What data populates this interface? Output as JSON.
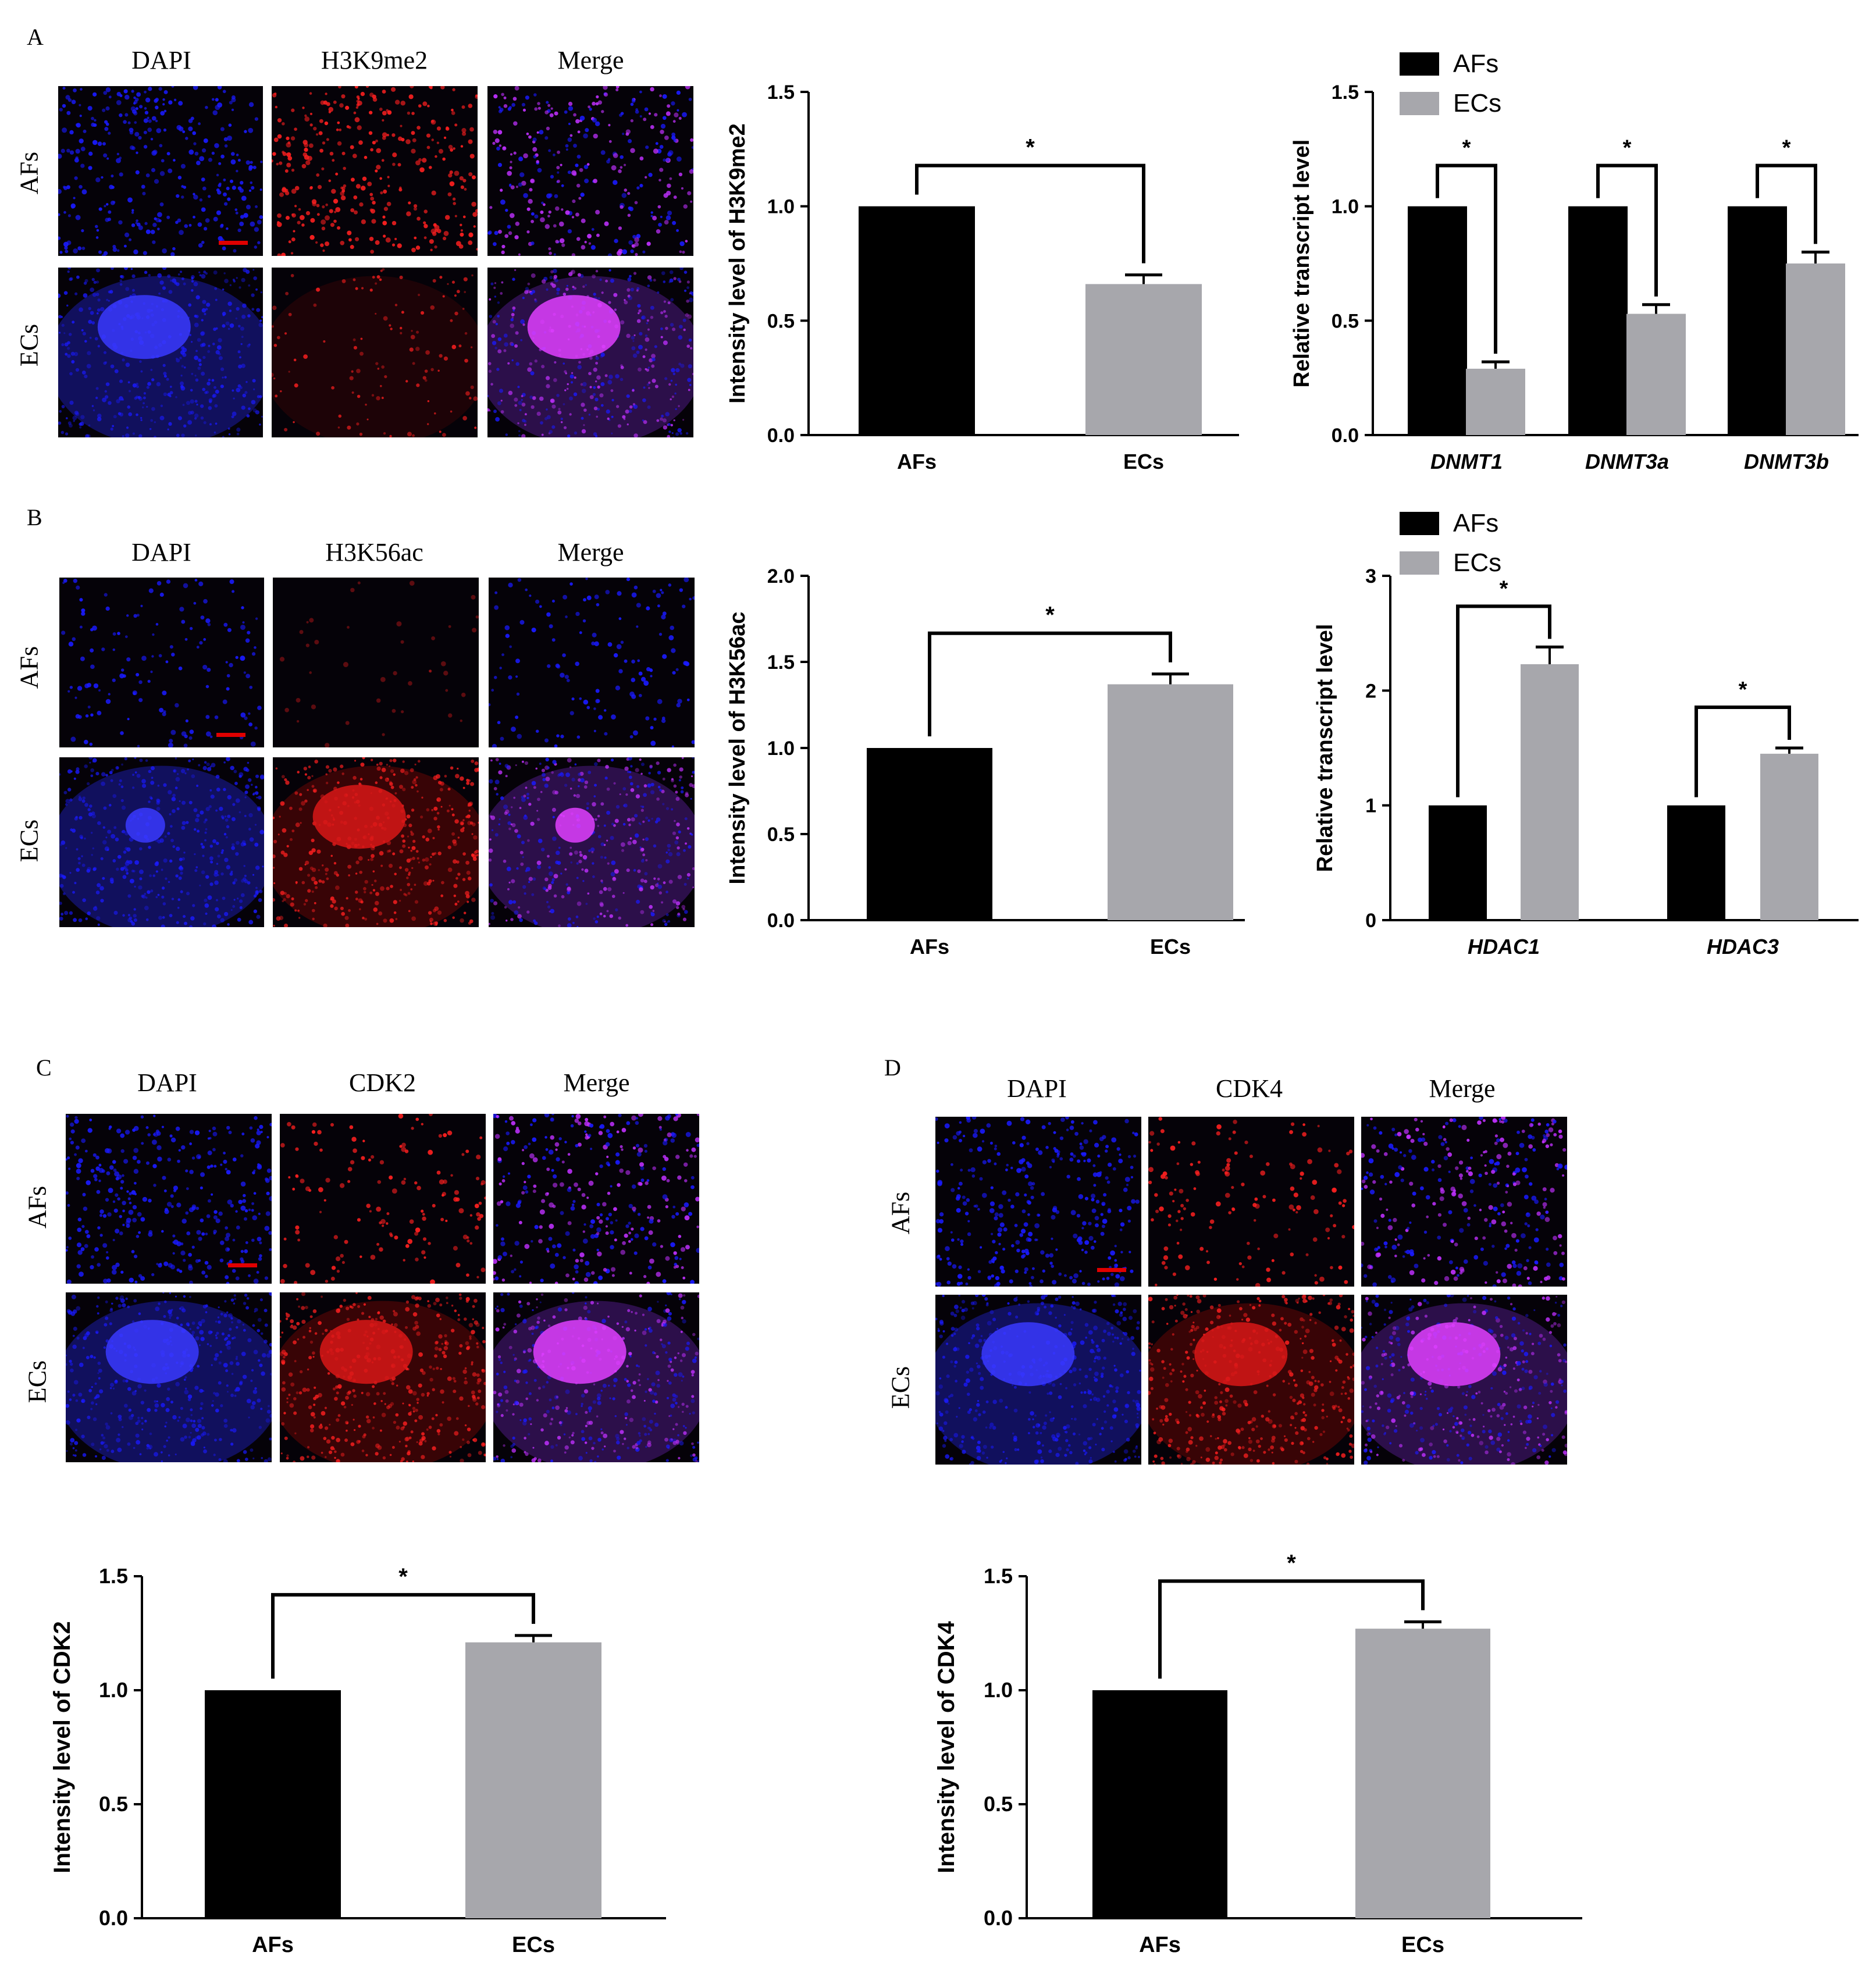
{
  "panels": {
    "A": {
      "letter": "A",
      "columns": [
        "DAPI",
        "H3K9me2",
        "Merge"
      ],
      "rows": [
        "AFs",
        "ECs"
      ]
    },
    "B": {
      "letter": "B",
      "columns": [
        "DAPI",
        "H3K56ac",
        "Merge"
      ],
      "rows": [
        "AFs",
        "ECs"
      ]
    },
    "C": {
      "letter": "C",
      "columns": [
        "DAPI",
        "CDK2",
        "Merge"
      ],
      "rows": [
        "AFs",
        "ECs"
      ]
    },
    "D": {
      "letter": "D",
      "columns": [
        "DAPI",
        "CDK4",
        "Merge"
      ],
      "rows": [
        "AFs",
        "ECs"
      ]
    }
  },
  "colors": {
    "afs": "#000000",
    "ecs": "#a7a7ac",
    "dapi": "#1a1aff",
    "stain": "#ff2020",
    "scalebar": "#e00000"
  },
  "chart_data": [
    {
      "id": "A-intensity",
      "type": "bar",
      "categories": [
        "AFs",
        "ECs"
      ],
      "values": [
        1.0,
        0.66
      ],
      "errors": [
        0,
        0.04
      ],
      "ylabel": "Intensity level of H3K9me2",
      "yticks": [
        "0.0",
        "0.5",
        "1.0",
        "1.5"
      ],
      "ylim": [
        0,
        1.5
      ],
      "significance": [
        {
          "from": 0,
          "to": 1,
          "label": "*"
        }
      ]
    },
    {
      "id": "A-transcript",
      "type": "bar",
      "categories": [
        "DNMT1",
        "DNMT3a",
        "DNMT3b"
      ],
      "series": [
        {
          "name": "AFs",
          "values": [
            1.0,
            1.0,
            1.0
          ],
          "errors": [
            0,
            0,
            0
          ]
        },
        {
          "name": "ECs",
          "values": [
            0.29,
            0.53,
            0.75
          ],
          "errors": [
            0.03,
            0.04,
            0.05
          ]
        }
      ],
      "ylabel": "Relative transcript level",
      "yticks": [
        "0.0",
        "0.5",
        "1.0",
        "1.5"
      ],
      "ylim": [
        0,
        1.5
      ],
      "legend": "top-left",
      "significance": [
        {
          "label": "*"
        },
        {
          "label": "*"
        },
        {
          "label": "*"
        }
      ]
    },
    {
      "id": "B-intensity",
      "type": "bar",
      "categories": [
        "AFs",
        "ECs"
      ],
      "values": [
        1.0,
        1.37
      ],
      "errors": [
        0,
        0.06
      ],
      "ylabel": "Intensity level of H3K56ac",
      "yticks": [
        "0.0",
        "0.5",
        "1.0",
        "1.5",
        "2.0"
      ],
      "ylim": [
        0,
        2.0
      ],
      "significance": [
        {
          "from": 0,
          "to": 1,
          "label": "*"
        }
      ]
    },
    {
      "id": "B-transcript",
      "type": "bar",
      "categories": [
        "HDAC1",
        "HDAC3"
      ],
      "series": [
        {
          "name": "AFs",
          "values": [
            1.0,
            1.0
          ],
          "errors": [
            0,
            0
          ]
        },
        {
          "name": "ECs",
          "values": [
            2.23,
            1.45
          ],
          "errors": [
            0.15,
            0.05
          ]
        }
      ],
      "ylabel": "Relative transcript level",
      "yticks": [
        "0",
        "1",
        "2",
        "3"
      ],
      "ylim": [
        0,
        3
      ],
      "legend": "top-left",
      "significance": [
        {
          "label": "*"
        },
        {
          "label": "*"
        }
      ]
    },
    {
      "id": "C-intensity",
      "type": "bar",
      "categories": [
        "AFs",
        "ECs"
      ],
      "values": [
        1.0,
        1.21
      ],
      "errors": [
        0,
        0.03
      ],
      "ylabel": "Intensity level of CDK2",
      "yticks": [
        "0.0",
        "0.5",
        "1.0",
        "1.5"
      ],
      "ylim": [
        0,
        1.5
      ],
      "significance": [
        {
          "from": 0,
          "to": 1,
          "label": "*"
        }
      ]
    },
    {
      "id": "D-intensity",
      "type": "bar",
      "categories": [
        "AFs",
        "ECs"
      ],
      "values": [
        1.0,
        1.27
      ],
      "errors": [
        0,
        0.03
      ],
      "ylabel": "Intensity level of CDK4",
      "yticks": [
        "0.0",
        "0.5",
        "1.0",
        "1.5"
      ],
      "ylim": [
        0,
        1.5
      ],
      "significance": [
        {
          "from": 0,
          "to": 1,
          "label": "*"
        }
      ]
    }
  ]
}
